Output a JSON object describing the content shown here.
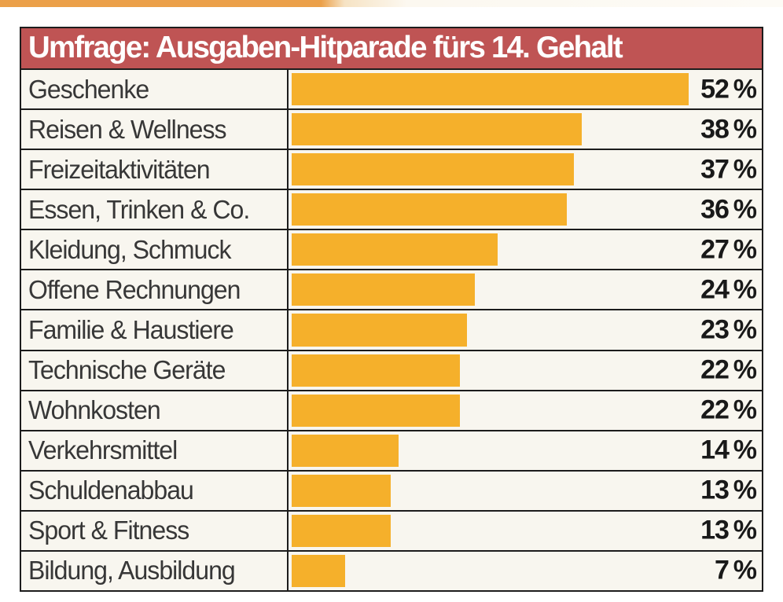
{
  "chart_data": {
    "type": "bar",
    "orientation": "horizontal",
    "title": "Umfrage: Ausgaben-Hitparade fürs 14. Gehalt",
    "categories": [
      "Geschenke",
      "Reisen & Wellness",
      "Freizeitaktivitäten",
      "Essen, Trinken & Co.",
      "Kleidung, Schmuck",
      "Offene Rechnungen",
      "Familie & Haustiere",
      "Technische Geräte",
      "Wohnkosten",
      "Verkehrsmittel",
      "Schuldenabbau",
      "Sport & Fitness",
      "Bildung, Ausbildung"
    ],
    "values": [
      52,
      38,
      37,
      36,
      27,
      24,
      23,
      22,
      22,
      14,
      13,
      13,
      7
    ],
    "value_suffix": " %",
    "xlim": [
      0,
      62
    ],
    "grid": false,
    "legend": false,
    "colors": {
      "bar": "#F5B02B",
      "title_background": "#BF5454",
      "title_text": "#FFFFFF",
      "row_background": "#F8F6EF",
      "border": "#1C1C1C",
      "label_text": "#373737",
      "percent_text": "#191919",
      "top_strip": "#EBA049"
    }
  }
}
